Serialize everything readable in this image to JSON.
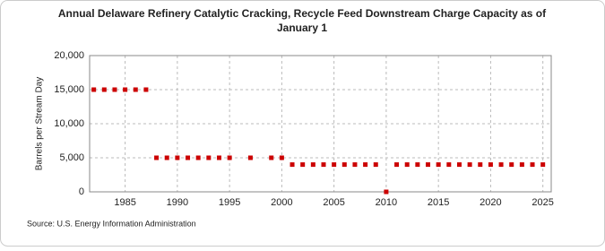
{
  "chart_data": {
    "type": "scatter",
    "title": "Annual Delaware Refinery Catalytic Cracking, Recycle Feed Downstream Charge Capacity as of",
    "subtitle": "January 1",
    "y_label": "Barrels per Stream Day",
    "source": "Source: U.S. Energy Information Administration",
    "x": [
      1982,
      1983,
      1984,
      1985,
      1986,
      1987,
      1988,
      1989,
      1990,
      1991,
      1992,
      1993,
      1994,
      1995,
      1997,
      1999,
      2000,
      2001,
      2002,
      2003,
      2004,
      2005,
      2006,
      2007,
      2008,
      2009,
      2010,
      2011,
      2012,
      2013,
      2014,
      2015,
      2016,
      2017,
      2018,
      2019,
      2020,
      2021,
      2022,
      2023,
      2024,
      2025
    ],
    "values": [
      15000,
      15000,
      15000,
      15000,
      15000,
      15000,
      5000,
      5000,
      5000,
      5000,
      5000,
      5000,
      5000,
      5000,
      5000,
      5000,
      5000,
      4000,
      4000,
      4000,
      4000,
      4000,
      4000,
      4000,
      4000,
      4000,
      0,
      4000,
      4000,
      4000,
      4000,
      4000,
      4000,
      4000,
      4000,
      4000,
      4000,
      4000,
      4000,
      4000,
      4000,
      4000
    ],
    "color": "#cc0000",
    "xlim": [
      1981.6,
      2025.8
    ],
    "xticks": [
      1985,
      1990,
      1995,
      2000,
      2005,
      2010,
      2015,
      2020,
      2025
    ],
    "ylim": [
      0,
      20000
    ],
    "yticks": [
      0,
      {
        "value": 5000,
        "label": "5,000"
      },
      {
        "value": 10000,
        "label": "10,000"
      },
      {
        "value": 15000,
        "label": "15,000"
      },
      {
        "value": 20000,
        "label": "20,000"
      }
    ],
    "grid": true
  }
}
